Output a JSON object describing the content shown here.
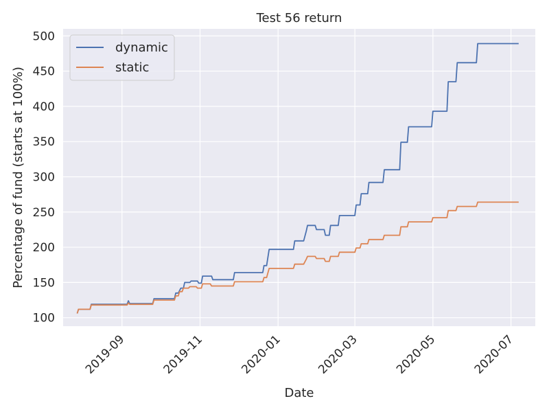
{
  "chart_data": {
    "type": "line",
    "title": "Test 56 return",
    "xlabel": "Date",
    "ylabel": "Percentage of fund (starts at 100%)",
    "x_ticks": [
      "2019-09",
      "2019-11",
      "2020-01",
      "2020-03",
      "2020-05",
      "2020-07"
    ],
    "x_tick_dates": [
      "2019-09-01",
      "2019-11-01",
      "2020-01-01",
      "2020-03-01",
      "2020-05-01",
      "2020-07-01"
    ],
    "y_ticks": [
      100,
      150,
      200,
      250,
      300,
      350,
      400,
      450,
      500
    ],
    "xlim": [
      "2019-07-17",
      "2020-07-20"
    ],
    "ylim": [
      88,
      510
    ],
    "grid": true,
    "legend_position": "top-left",
    "background": "#eaeaf2",
    "series": [
      {
        "name": "dynamic",
        "color": "#4c72b0",
        "points": [
          [
            "2019-07-28",
            106
          ],
          [
            "2019-07-29",
            112
          ],
          [
            "2019-08-07",
            112
          ],
          [
            "2019-08-08",
            119
          ],
          [
            "2019-09-05",
            119
          ],
          [
            "2019-09-06",
            124
          ],
          [
            "2019-09-07",
            120
          ],
          [
            "2019-09-25",
            120
          ],
          [
            "2019-09-26",
            127
          ],
          [
            "2019-10-12",
            127
          ],
          [
            "2019-10-13",
            135
          ],
          [
            "2019-10-15",
            135
          ],
          [
            "2019-10-17",
            142
          ],
          [
            "2019-10-19",
            142
          ],
          [
            "2019-10-20",
            150
          ],
          [
            "2019-10-24",
            150
          ],
          [
            "2019-10-25",
            152
          ],
          [
            "2019-10-30",
            152
          ],
          [
            "2019-10-31",
            149
          ],
          [
            "2019-11-02",
            149
          ],
          [
            "2019-11-03",
            159
          ],
          [
            "2019-11-10",
            159
          ],
          [
            "2019-11-11",
            154
          ],
          [
            "2019-11-27",
            154
          ],
          [
            "2019-11-28",
            164
          ],
          [
            "2019-12-20",
            164
          ],
          [
            "2019-12-21",
            174
          ],
          [
            "2019-12-23",
            174
          ],
          [
            "2019-12-25",
            197
          ],
          [
            "2020-01-13",
            197
          ],
          [
            "2020-01-14",
            209
          ],
          [
            "2020-01-21",
            209
          ],
          [
            "2020-01-23",
            223
          ],
          [
            "2020-01-24",
            231
          ],
          [
            "2020-01-30",
            231
          ],
          [
            "2020-01-31",
            225
          ],
          [
            "2020-02-06",
            225
          ],
          [
            "2020-02-07",
            217
          ],
          [
            "2020-02-10",
            217
          ],
          [
            "2020-02-11",
            231
          ],
          [
            "2020-02-17",
            231
          ],
          [
            "2020-02-18",
            245
          ],
          [
            "2020-03-01",
            245
          ],
          [
            "2020-03-02",
            260
          ],
          [
            "2020-03-05",
            260
          ],
          [
            "2020-03-06",
            276
          ],
          [
            "2020-03-11",
            276
          ],
          [
            "2020-03-12",
            292
          ],
          [
            "2020-03-23",
            292
          ],
          [
            "2020-03-24",
            310
          ],
          [
            "2020-04-05",
            310
          ],
          [
            "2020-04-06",
            349
          ],
          [
            "2020-04-11",
            349
          ],
          [
            "2020-04-12",
            371
          ],
          [
            "2020-04-30",
            371
          ],
          [
            "2020-05-01",
            393
          ],
          [
            "2020-05-12",
            393
          ],
          [
            "2020-05-13",
            435
          ],
          [
            "2020-05-19",
            435
          ],
          [
            "2020-05-20",
            462
          ],
          [
            "2020-06-04",
            462
          ],
          [
            "2020-06-05",
            489
          ],
          [
            "2020-07-07",
            489
          ]
        ]
      },
      {
        "name": "static",
        "color": "#dd8452",
        "points": [
          [
            "2019-07-28",
            106
          ],
          [
            "2019-07-29",
            112
          ],
          [
            "2019-08-07",
            112
          ],
          [
            "2019-08-08",
            118
          ],
          [
            "2019-09-05",
            118
          ],
          [
            "2019-09-06",
            121
          ],
          [
            "2019-09-07",
            119
          ],
          [
            "2019-09-25",
            119
          ],
          [
            "2019-09-26",
            125
          ],
          [
            "2019-10-12",
            125
          ],
          [
            "2019-10-13",
            131
          ],
          [
            "2019-10-15",
            131
          ],
          [
            "2019-10-16",
            137
          ],
          [
            "2019-10-18",
            137
          ],
          [
            "2019-10-19",
            142
          ],
          [
            "2019-10-23",
            142
          ],
          [
            "2019-10-24",
            144
          ],
          [
            "2019-10-29",
            144
          ],
          [
            "2019-10-30",
            142
          ],
          [
            "2019-11-02",
            142
          ],
          [
            "2019-11-03",
            148
          ],
          [
            "2019-11-09",
            148
          ],
          [
            "2019-11-10",
            145
          ],
          [
            "2019-11-27",
            145
          ],
          [
            "2019-11-28",
            151
          ],
          [
            "2019-12-20",
            151
          ],
          [
            "2019-12-21",
            157
          ],
          [
            "2019-12-23",
            157
          ],
          [
            "2019-12-25",
            170
          ],
          [
            "2020-01-13",
            170
          ],
          [
            "2020-01-14",
            176
          ],
          [
            "2020-01-21",
            176
          ],
          [
            "2020-01-23",
            183
          ],
          [
            "2020-01-24",
            187
          ],
          [
            "2020-01-30",
            187
          ],
          [
            "2020-01-31",
            184
          ],
          [
            "2020-02-06",
            184
          ],
          [
            "2020-02-07",
            180
          ],
          [
            "2020-02-10",
            180
          ],
          [
            "2020-02-11",
            187
          ],
          [
            "2020-02-17",
            187
          ],
          [
            "2020-02-18",
            193
          ],
          [
            "2020-03-01",
            193
          ],
          [
            "2020-03-02",
            199
          ],
          [
            "2020-03-05",
            199
          ],
          [
            "2020-03-06",
            205
          ],
          [
            "2020-03-11",
            205
          ],
          [
            "2020-03-12",
            211
          ],
          [
            "2020-03-23",
            211
          ],
          [
            "2020-03-24",
            217
          ],
          [
            "2020-04-05",
            217
          ],
          [
            "2020-04-06",
            229
          ],
          [
            "2020-04-11",
            229
          ],
          [
            "2020-04-12",
            236
          ],
          [
            "2020-04-30",
            236
          ],
          [
            "2020-05-01",
            242
          ],
          [
            "2020-05-12",
            242
          ],
          [
            "2020-05-13",
            252
          ],
          [
            "2020-05-19",
            252
          ],
          [
            "2020-05-20",
            258
          ],
          [
            "2020-06-04",
            258
          ],
          [
            "2020-06-05",
            264
          ],
          [
            "2020-07-07",
            264
          ]
        ]
      }
    ]
  }
}
